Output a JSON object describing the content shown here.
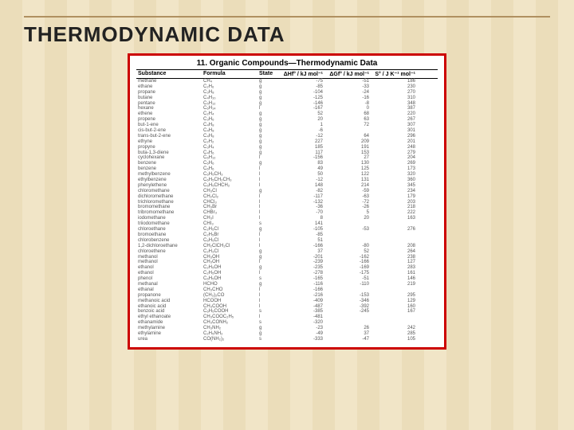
{
  "title": "THERMODYNAMIC DATA",
  "table": {
    "title": "11. Organic Compounds—Thermodynamic Data",
    "columns": [
      "Substance",
      "Formula",
      "State",
      "ΔHf° / kJ mol⁻¹",
      "ΔGf° / kJ mol⁻¹",
      "S° / J K⁻¹ mol⁻¹"
    ],
    "rows": [
      [
        "methane",
        "CH₄",
        "g",
        "-75",
        "-51",
        "186"
      ],
      [
        "ethane",
        "C₂H₆",
        "g",
        "-85",
        "-33",
        "230"
      ],
      [
        "propane",
        "C₃H₈",
        "g",
        "-104",
        "-24",
        "270"
      ],
      [
        "butane",
        "C₄H₁₀",
        "g",
        "-125",
        "-16",
        "310"
      ],
      [
        "pentane",
        "C₅H₁₂",
        "g",
        "-146",
        "-8",
        "348"
      ],
      [
        "hexane",
        "C₆H₁₄",
        "l",
        "-167",
        "0",
        "387"
      ],
      [
        "ethene",
        "C₂H₄",
        "g",
        "52",
        "68",
        "220"
      ],
      [
        "propene",
        "C₃H₆",
        "g",
        "20",
        "63",
        "267"
      ],
      [
        "but-1-ene",
        "C₄H₈",
        "g",
        "1",
        "72",
        "307"
      ],
      [
        "cis-but-2-ene",
        "C₄H₈",
        "g",
        "-6",
        "",
        "301"
      ],
      [
        "trans-but-2-ene",
        "C₄H₈",
        "g",
        "-12",
        "64",
        "296"
      ],
      [
        "ethyne",
        "C₂H₂",
        "g",
        "227",
        "209",
        "201"
      ],
      [
        "propyne",
        "C₃H₄",
        "g",
        "185",
        "191",
        "248"
      ],
      [
        "buta-1,3-diene",
        "C₄H₆",
        "g",
        "117",
        "153",
        "279"
      ],
      [
        "cyclohexane",
        "C₆H₁₂",
        "l",
        "-156",
        "27",
        "204"
      ],
      [
        "benzene",
        "C₆H₆",
        "g",
        "83",
        "130",
        "269"
      ],
      [
        "benzene",
        "C₆H₆",
        "l",
        "49",
        "125",
        "173"
      ],
      [
        "methylbenzene",
        "C₆H₅CH₃",
        "l",
        "50",
        "122",
        "320"
      ],
      [
        "ethylbenzene",
        "C₆H₅CH₂CH₃",
        "l",
        "-12",
        "131",
        "360"
      ],
      [
        "phenylethene",
        "C₆H₅CHCH₂",
        "l",
        "148",
        "214",
        "345"
      ],
      [
        "chloromethane",
        "CH₃Cl",
        "g",
        "-82",
        "-59",
        "234"
      ],
      [
        "dichloromethane",
        "CH₂Cl₂",
        "l",
        "-117",
        "-63",
        "179"
      ],
      [
        "trichloromethane",
        "CHCl₃",
        "l",
        "-132",
        "-72",
        "203"
      ],
      [
        "bromomethane",
        "CH₃Br",
        "l",
        "-36",
        "-26",
        "218"
      ],
      [
        "tribromomethane",
        "CHBr₃",
        "l",
        "-70",
        "5",
        "222"
      ],
      [
        "iodomethane",
        "CH₃I",
        "l",
        "8",
        "20",
        "163"
      ],
      [
        "triiodomethane",
        "CHI₃",
        "s",
        "141",
        "",
        ""
      ],
      [
        "chloroethane",
        "C₂H₅Cl",
        "g",
        "-105",
        "-53",
        "276"
      ],
      [
        "bromoethane",
        "C₂H₅Br",
        "l",
        "-85",
        "",
        ""
      ],
      [
        "chlorobenzene",
        "C₆H₅Cl",
        "l",
        "51",
        "",
        ""
      ],
      [
        "1,2-dichloroethane",
        "CH₂ClCH₂Cl",
        "l",
        "-166",
        "-80",
        "208"
      ],
      [
        "chloroethene",
        "C₂H₃Cl",
        "g",
        "37",
        "52",
        "264"
      ],
      [
        "methanol",
        "CH₃OH",
        "g",
        "-201",
        "-162",
        "238"
      ],
      [
        "methanol",
        "CH₃OH",
        "l",
        "-239",
        "-166",
        "127"
      ],
      [
        "ethanol",
        "C₂H₅OH",
        "g",
        "-235",
        "-169",
        "283"
      ],
      [
        "ethanol",
        "C₂H₅OH",
        "l",
        "-278",
        "-175",
        "161"
      ],
      [
        "phenol",
        "C₆H₅OH",
        "s",
        "-165",
        "-51",
        "146"
      ],
      [
        "methanal",
        "HCHO",
        "g",
        "-116",
        "-110",
        "219"
      ],
      [
        "ethanal",
        "CH₃CHO",
        "l",
        "-166",
        "",
        ""
      ],
      [
        "propanone",
        "(CH₃)₂CO",
        "l",
        "-216",
        "-153",
        "295"
      ],
      [
        "methanoic acid",
        "HCOOH",
        "l",
        "-409",
        "-346",
        "129"
      ],
      [
        "ethanoic acid",
        "CH₃COOH",
        "l",
        "-487",
        "-392",
        "160"
      ],
      [
        "benzoic acid",
        "C₆H₅COOH",
        "s",
        "-385",
        "-245",
        "167"
      ],
      [
        "ethyl ethanoate",
        "CH₃COOC₂H₅",
        "l",
        "-481",
        "",
        ""
      ],
      [
        "ethanamide",
        "CH₃CONH₂",
        "s",
        "-320",
        "",
        ""
      ],
      [
        "methylamine",
        "CH₃NH₂",
        "g",
        "-23",
        "26",
        "242"
      ],
      [
        "ethylamine",
        "C₂H₅NH₂",
        "g",
        "-49",
        "37",
        "285"
      ],
      [
        "urea",
        "CO(NH₂)₂",
        "s",
        "-333",
        "-47",
        "105"
      ]
    ]
  }
}
